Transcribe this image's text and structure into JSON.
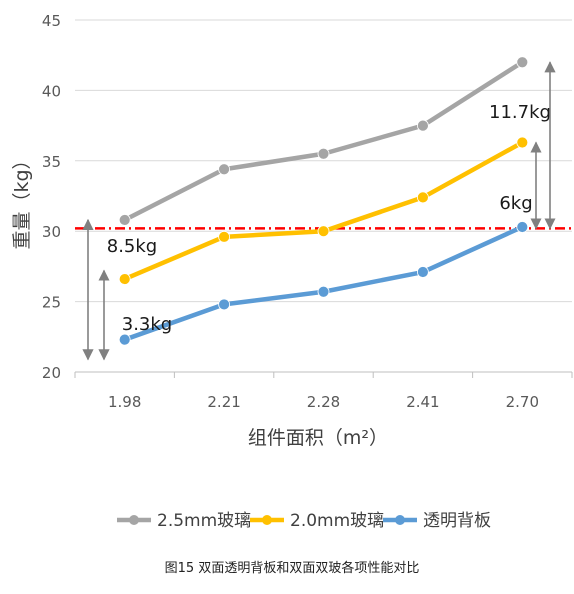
{
  "chart_data": {
    "type": "line",
    "title": "",
    "xlabel": "组件面积（m²）",
    "ylabel": "重量（kg）",
    "categories": [
      "1.98",
      "2.21",
      "2.28",
      "2.41",
      "2.70"
    ],
    "ylim": [
      20,
      45
    ],
    "yticks": [
      "20",
      "25",
      "30",
      "35",
      "40",
      "45"
    ],
    "grid": "horizontal",
    "legend_position": "bottom",
    "series": [
      {
        "name": "2.5mm玻璃",
        "color": "#a5a5a5",
        "values": [
          30.8,
          34.4,
          35.5,
          37.5,
          42.0
        ]
      },
      {
        "name": "2.0mm玻璃",
        "color": "#ffc000",
        "values": [
          26.6,
          29.6,
          30.0,
          32.4,
          36.3
        ]
      },
      {
        "name": "透明背板",
        "color": "#5b9bd5",
        "values": [
          22.3,
          24.8,
          25.7,
          27.1,
          30.3
        ]
      }
    ],
    "reference_line": {
      "y": 30.2,
      "color": "#ff0000",
      "style": "dash-dot"
    },
    "annotations": [
      {
        "text": "8.5kg",
        "color": "#808080"
      },
      {
        "text": "3.3kg",
        "color": "#808080"
      },
      {
        "text": "11.7kg",
        "color": "#808080"
      },
      {
        "text": "6kg",
        "color": "#808080"
      }
    ],
    "caption": "图15 双面透明背板和双面双玻各项性能对比"
  }
}
